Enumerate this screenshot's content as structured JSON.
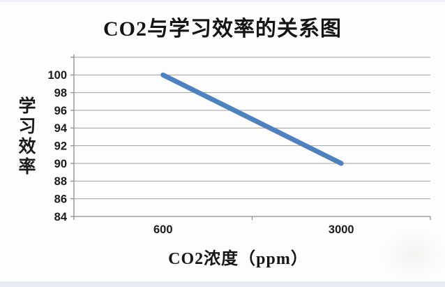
{
  "title": "CO2与学习效率的关系图",
  "colors": {
    "line": "#4f81bd",
    "grid": "#a0a0a0",
    "axis": "#8c8c8c",
    "tick_text": "#1b1b1b",
    "background": "#fdfdfd",
    "edge_strip": "#e9edf3"
  },
  "chart_data": {
    "type": "line",
    "title": "CO2与学习效率的关系图",
    "xlabel": "CO2浓度（ppm）",
    "ylabel": "学习效率",
    "categories": [
      "600",
      "3000"
    ],
    "series": [
      {
        "name": "学习效率",
        "values": [
          100,
          90
        ]
      }
    ],
    "ylim": [
      84,
      102
    ],
    "yticks": [
      84,
      86,
      88,
      90,
      92,
      94,
      96,
      98,
      100
    ],
    "grid": true,
    "legend": "none",
    "line_width": 7
  }
}
